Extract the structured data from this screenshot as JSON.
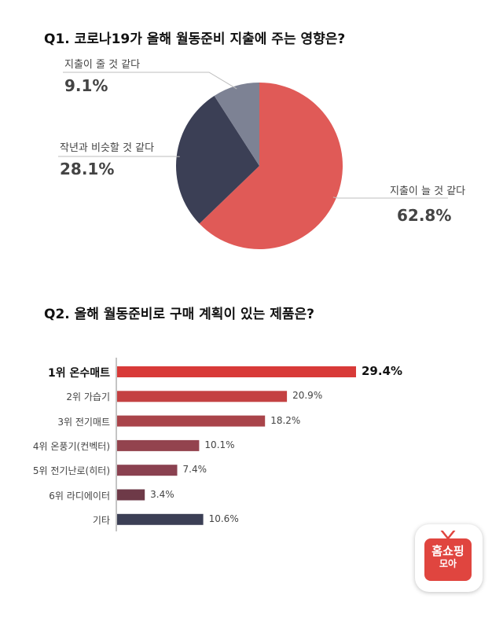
{
  "q1": {
    "title": "Q1. 코로나19가 올해 월동준비 지출에 주는 영향은?"
  },
  "q2": {
    "title": "Q2. 올해 월동준비로 구매 계획이 있는 제품은?"
  },
  "chart_data": [
    {
      "type": "pie",
      "title": "Q1. 코로나19가 올해 월동준비 지출에 주는 영향은?",
      "slices": [
        {
          "label": "지출이 늘 것 같다",
          "value": 62.8,
          "pct": "62.8%",
          "color": "#e05a57"
        },
        {
          "label": "작년과 비슷할 것 같다",
          "value": 28.1,
          "pct": "28.1%",
          "color": "#3b3f55"
        },
        {
          "label": "지출이 줄 것 같다",
          "value": 9.1,
          "pct": "9.1%",
          "color": "#7d8294"
        }
      ]
    },
    {
      "type": "bar",
      "orientation": "horizontal",
      "title": "Q2. 올해 월동준비로 구매 계획이 있는 제품은?",
      "categories": [
        "1위 온수매트",
        "2위 가습기",
        "3위 전기매트",
        "4위 온풍기(컨벡터)",
        "5위 전기난로(히터)",
        "6위 라디에이터",
        "기타"
      ],
      "values": [
        29.4,
        20.9,
        18.2,
        10.1,
        7.4,
        3.4,
        10.6
      ],
      "value_labels": [
        "29.4%",
        "20.9%",
        "18.2%",
        "10.1%",
        "7.4%",
        "3.4%",
        "10.6%"
      ],
      "colors": [
        "#d83a38",
        "#c44142",
        "#a9444a",
        "#93434e",
        "#8a4150",
        "#6e3a48",
        "#3b3f55"
      ]
    }
  ],
  "logo": {
    "line1": "홈쇼핑",
    "line2": "모아",
    "icon": "tv-icon"
  }
}
